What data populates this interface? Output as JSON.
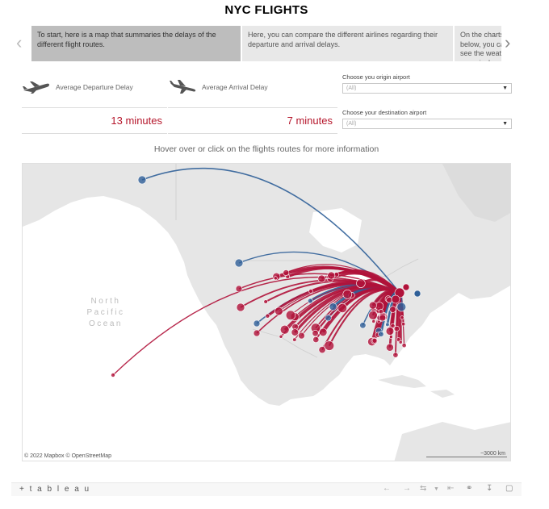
{
  "title": "NYC FLIGHTS",
  "story": {
    "prev_icon": "chevron-left-icon",
    "next_icon": "chevron-right-icon",
    "cards": [
      {
        "text": "To start, here is a map that summaries the delays of the different flight routes.",
        "active": true
      },
      {
        "text": "Here, you can compare the different airlines regarding their departure and arrival delays.",
        "active": false
      },
      {
        "text": "On the charts below, you can see the weather on arrival",
        "active": false
      }
    ]
  },
  "kpis": {
    "departure": {
      "label": "Average Departure Delay",
      "value": "13 minutes",
      "icon": "plane-takeoff-icon"
    },
    "arrival": {
      "label": "Average Arrival Delay",
      "value": "7 minutes",
      "icon": "plane-landing-icon"
    }
  },
  "filters": {
    "origin": {
      "label": "Choose you origin airport",
      "value": "(All)"
    },
    "destination": {
      "label": "Choose your destination airport",
      "value": "(All)"
    }
  },
  "hint": "Hover over or click on the flights routes for more information",
  "map": {
    "ocean_label": [
      "North",
      "Pacific",
      "Ocean"
    ],
    "attribution": "© 2022 Mapbox  © OpenStreetMap",
    "scale": "~3000 km",
    "colors": {
      "delayed": "#b0123a",
      "on_time": "#2f5f98",
      "land": "#e6e6e6",
      "water": "#ffffff"
    }
  },
  "toolbar": {
    "logo": "+ t a b l e a u",
    "icons": [
      "undo-icon",
      "redo-icon",
      "revert-icon",
      "dropdown-icon",
      "reset-icon",
      "share-icon",
      "download-icon",
      "fullscreen-icon"
    ]
  }
}
